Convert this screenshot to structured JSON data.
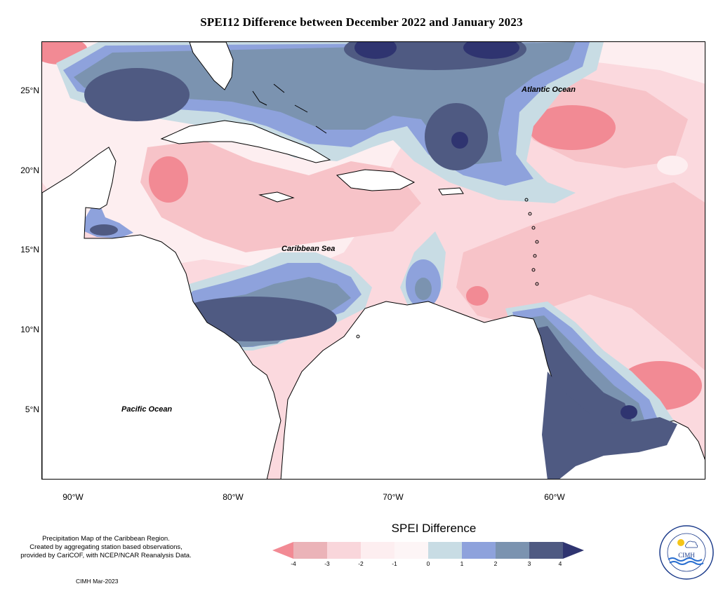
{
  "title": "SPEI12 Difference between December 2022 and January 2023",
  "map": {
    "lat_labels": [
      "25°N",
      "20°N",
      "15°N",
      "10°N",
      "5°N"
    ],
    "lon_labels": [
      "90°W",
      "80°W",
      "70°W",
      "60°W"
    ],
    "ocean_labels": {
      "atlantic": "Atlantic Ocean",
      "caribbean": "Caribbean Sea",
      "pacific": "Pacific Ocean"
    }
  },
  "legend": {
    "title": "SPEI Difference",
    "ticks": [
      "-4",
      "-3",
      "-2",
      "-1",
      "0",
      "1",
      "2",
      "3",
      "4"
    ],
    "colors": [
      "#f28a94",
      "#ebb3b8",
      "#f9d6db",
      "#fdeef0",
      "#c8dce4",
      "#8ea2dc",
      "#7b93b0",
      "#4f5a82",
      "#2f3470"
    ]
  },
  "footnote": {
    "line1": "Precipitation Map of the Caribbean Region.",
    "line2": "Created by aggregating station based observations,",
    "line3": "provided by CariCOF, with NCEP/NCAR Reanalysis Data."
  },
  "credit": "CIMH Mar-2023",
  "logo": {
    "text": "CIMH"
  }
}
